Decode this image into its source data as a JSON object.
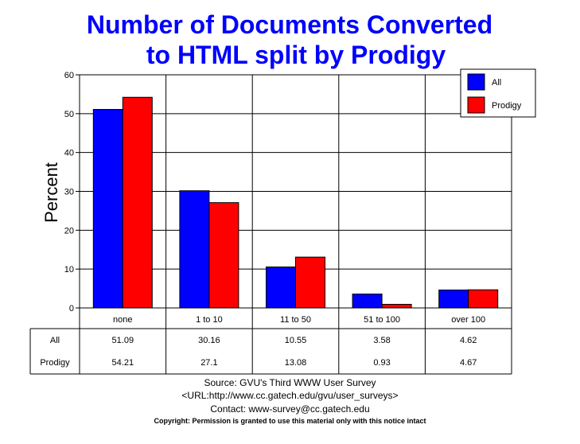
{
  "chart_data": {
    "type": "bar",
    "title_line1": "Number of Documents Converted",
    "title_line2": "to HTML split by Prodigy",
    "ylabel": "Percent",
    "xlabel": "",
    "ylim": [
      0,
      60
    ],
    "yticks": [
      "0",
      "10",
      "20",
      "30",
      "40",
      "50",
      "60"
    ],
    "categories": [
      "none",
      "1 to 10",
      "11 to 50",
      "51 to 100",
      "over 100"
    ],
    "series": [
      {
        "name": "All",
        "color": "#0000ff",
        "values": [
          51.09,
          30.16,
          10.55,
          3.58,
          4.62
        ]
      },
      {
        "name": "Prodigy",
        "color": "#ff0000",
        "values": [
          54.21,
          27.1,
          13.08,
          0.93,
          4.67
        ]
      }
    ],
    "table": {
      "rows": [
        {
          "label": "All",
          "cells": [
            "51.09",
            "30.16",
            "10.55",
            "3.58",
            "4.62"
          ]
        },
        {
          "label": "Prodigy",
          "cells": [
            "54.21",
            "27.1",
            "13.08",
            "0.93",
            "4.67"
          ]
        }
      ]
    },
    "legend_position": "top-right",
    "grid": true,
    "title_color": "#0000ff"
  },
  "footer": {
    "source": "Source: GVU's Third WWW User Survey",
    "url": "<URL:http://www.cc.gatech.edu/gvu/user_surveys>",
    "contact": "Contact: www-survey@cc.gatech.edu",
    "copyright": "Copyright: Permission is granted to use this material only with this notice intact"
  }
}
